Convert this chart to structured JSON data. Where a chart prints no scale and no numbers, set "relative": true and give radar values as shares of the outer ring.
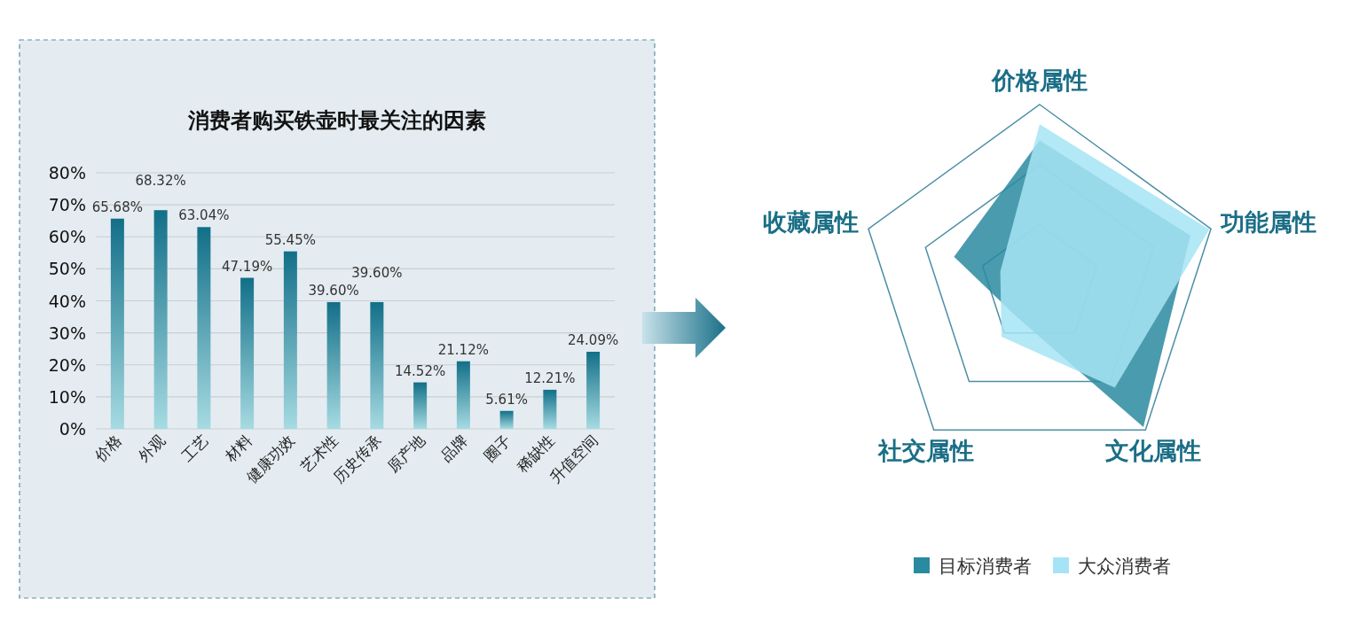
{
  "chart_data": [
    {
      "type": "bar",
      "title": "消费者购买铁壶时最关注的因素",
      "categories": [
        "价格",
        "外观",
        "工艺",
        "材料",
        "健康功效",
        "艺术性",
        "历史传承",
        "原产地",
        "品牌",
        "圈子",
        "稀缺性",
        "升值空间"
      ],
      "values": [
        65.68,
        68.32,
        63.04,
        47.19,
        55.45,
        39.6,
        39.6,
        14.52,
        21.12,
        5.61,
        12.21,
        24.09
      ],
      "value_labels": [
        "65.68%",
        "68.32%",
        "63.04%",
        "47.19%",
        "55.45%",
        "39.60%",
        "39.60%",
        "14.52%",
        "21.12%",
        "5.61%",
        "12.21%",
        "24.09%"
      ],
      "color": "#126f88",
      "ylim": [
        0,
        80
      ],
      "yticks": [
        {
          "value": 0,
          "label": "0%"
        },
        {
          "value": 10,
          "label": "10%"
        },
        {
          "value": 20,
          "label": "20%"
        },
        {
          "value": 30,
          "label": "30%"
        },
        {
          "value": 40,
          "label": "40%"
        },
        {
          "value": 50,
          "label": "50%"
        },
        {
          "value": 60,
          "label": "60%"
        },
        {
          "value": 70,
          "label": "70%"
        },
        {
          "value": 80,
          "label": "80%"
        }
      ],
      "grid": "y"
    },
    {
      "type": "radar",
      "relative": true,
      "categories": [
        "价格属性",
        "功能属性",
        "文化属性",
        "社交属性",
        "收藏属性"
      ],
      "series": [
        {
          "name": "目标消费者",
          "color": "#2a8aa0",
          "values": [
            0.8,
            0.88,
            0.98,
            0.22,
            0.5
          ]
        },
        {
          "name": "大众消费者",
          "color": "#a6e4f5",
          "values": [
            0.89,
            0.99,
            0.71,
            0.36,
            0.23
          ]
        }
      ],
      "legend": "bottom"
    }
  ]
}
